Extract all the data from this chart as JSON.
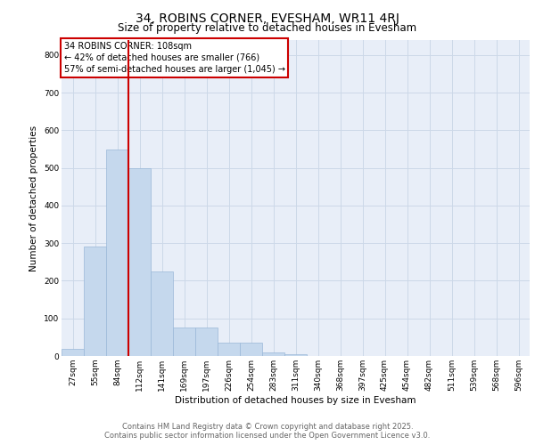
{
  "title_line1": "34, ROBINS CORNER, EVESHAM, WR11 4RJ",
  "title_line2": "Size of property relative to detached houses in Evesham",
  "xlabel": "Distribution of detached houses by size in Evesham",
  "ylabel": "Number of detached properties",
  "categories": [
    "27sqm",
    "55sqm",
    "84sqm",
    "112sqm",
    "141sqm",
    "169sqm",
    "197sqm",
    "226sqm",
    "254sqm",
    "283sqm",
    "311sqm",
    "340sqm",
    "368sqm",
    "397sqm",
    "425sqm",
    "454sqm",
    "482sqm",
    "511sqm",
    "539sqm",
    "568sqm",
    "596sqm"
  ],
  "values": [
    20,
    290,
    548,
    500,
    225,
    75,
    75,
    35,
    35,
    10,
    5,
    0,
    0,
    0,
    0,
    0,
    0,
    0,
    0,
    0,
    0
  ],
  "bar_color": "#c5d8ed",
  "bar_edge_color": "#9ab8d8",
  "bar_width": 1.0,
  "vline_color": "#cc0000",
  "vline_pos": 2.5,
  "annotation_text_line1": "34 ROBINS CORNER: 108sqm",
  "annotation_text_line2": "← 42% of detached houses are smaller (766)",
  "annotation_text_line3": "57% of semi-detached houses are larger (1,045) →",
  "annotation_box_color": "#cc0000",
  "annotation_fill": "#ffffff",
  "ylim": [
    0,
    840
  ],
  "yticks": [
    0,
    100,
    200,
    300,
    400,
    500,
    600,
    700,
    800
  ],
  "grid_color": "#ccd8e8",
  "background_color": "#e8eef8",
  "footer_line1": "Contains HM Land Registry data © Crown copyright and database right 2025.",
  "footer_line2": "Contains public sector information licensed under the Open Government Licence v3.0.",
  "title_fontsize": 10,
  "subtitle_fontsize": 8.5,
  "axis_label_fontsize": 7.5,
  "tick_fontsize": 6.5,
  "annotation_fontsize": 7,
  "footer_fontsize": 6
}
